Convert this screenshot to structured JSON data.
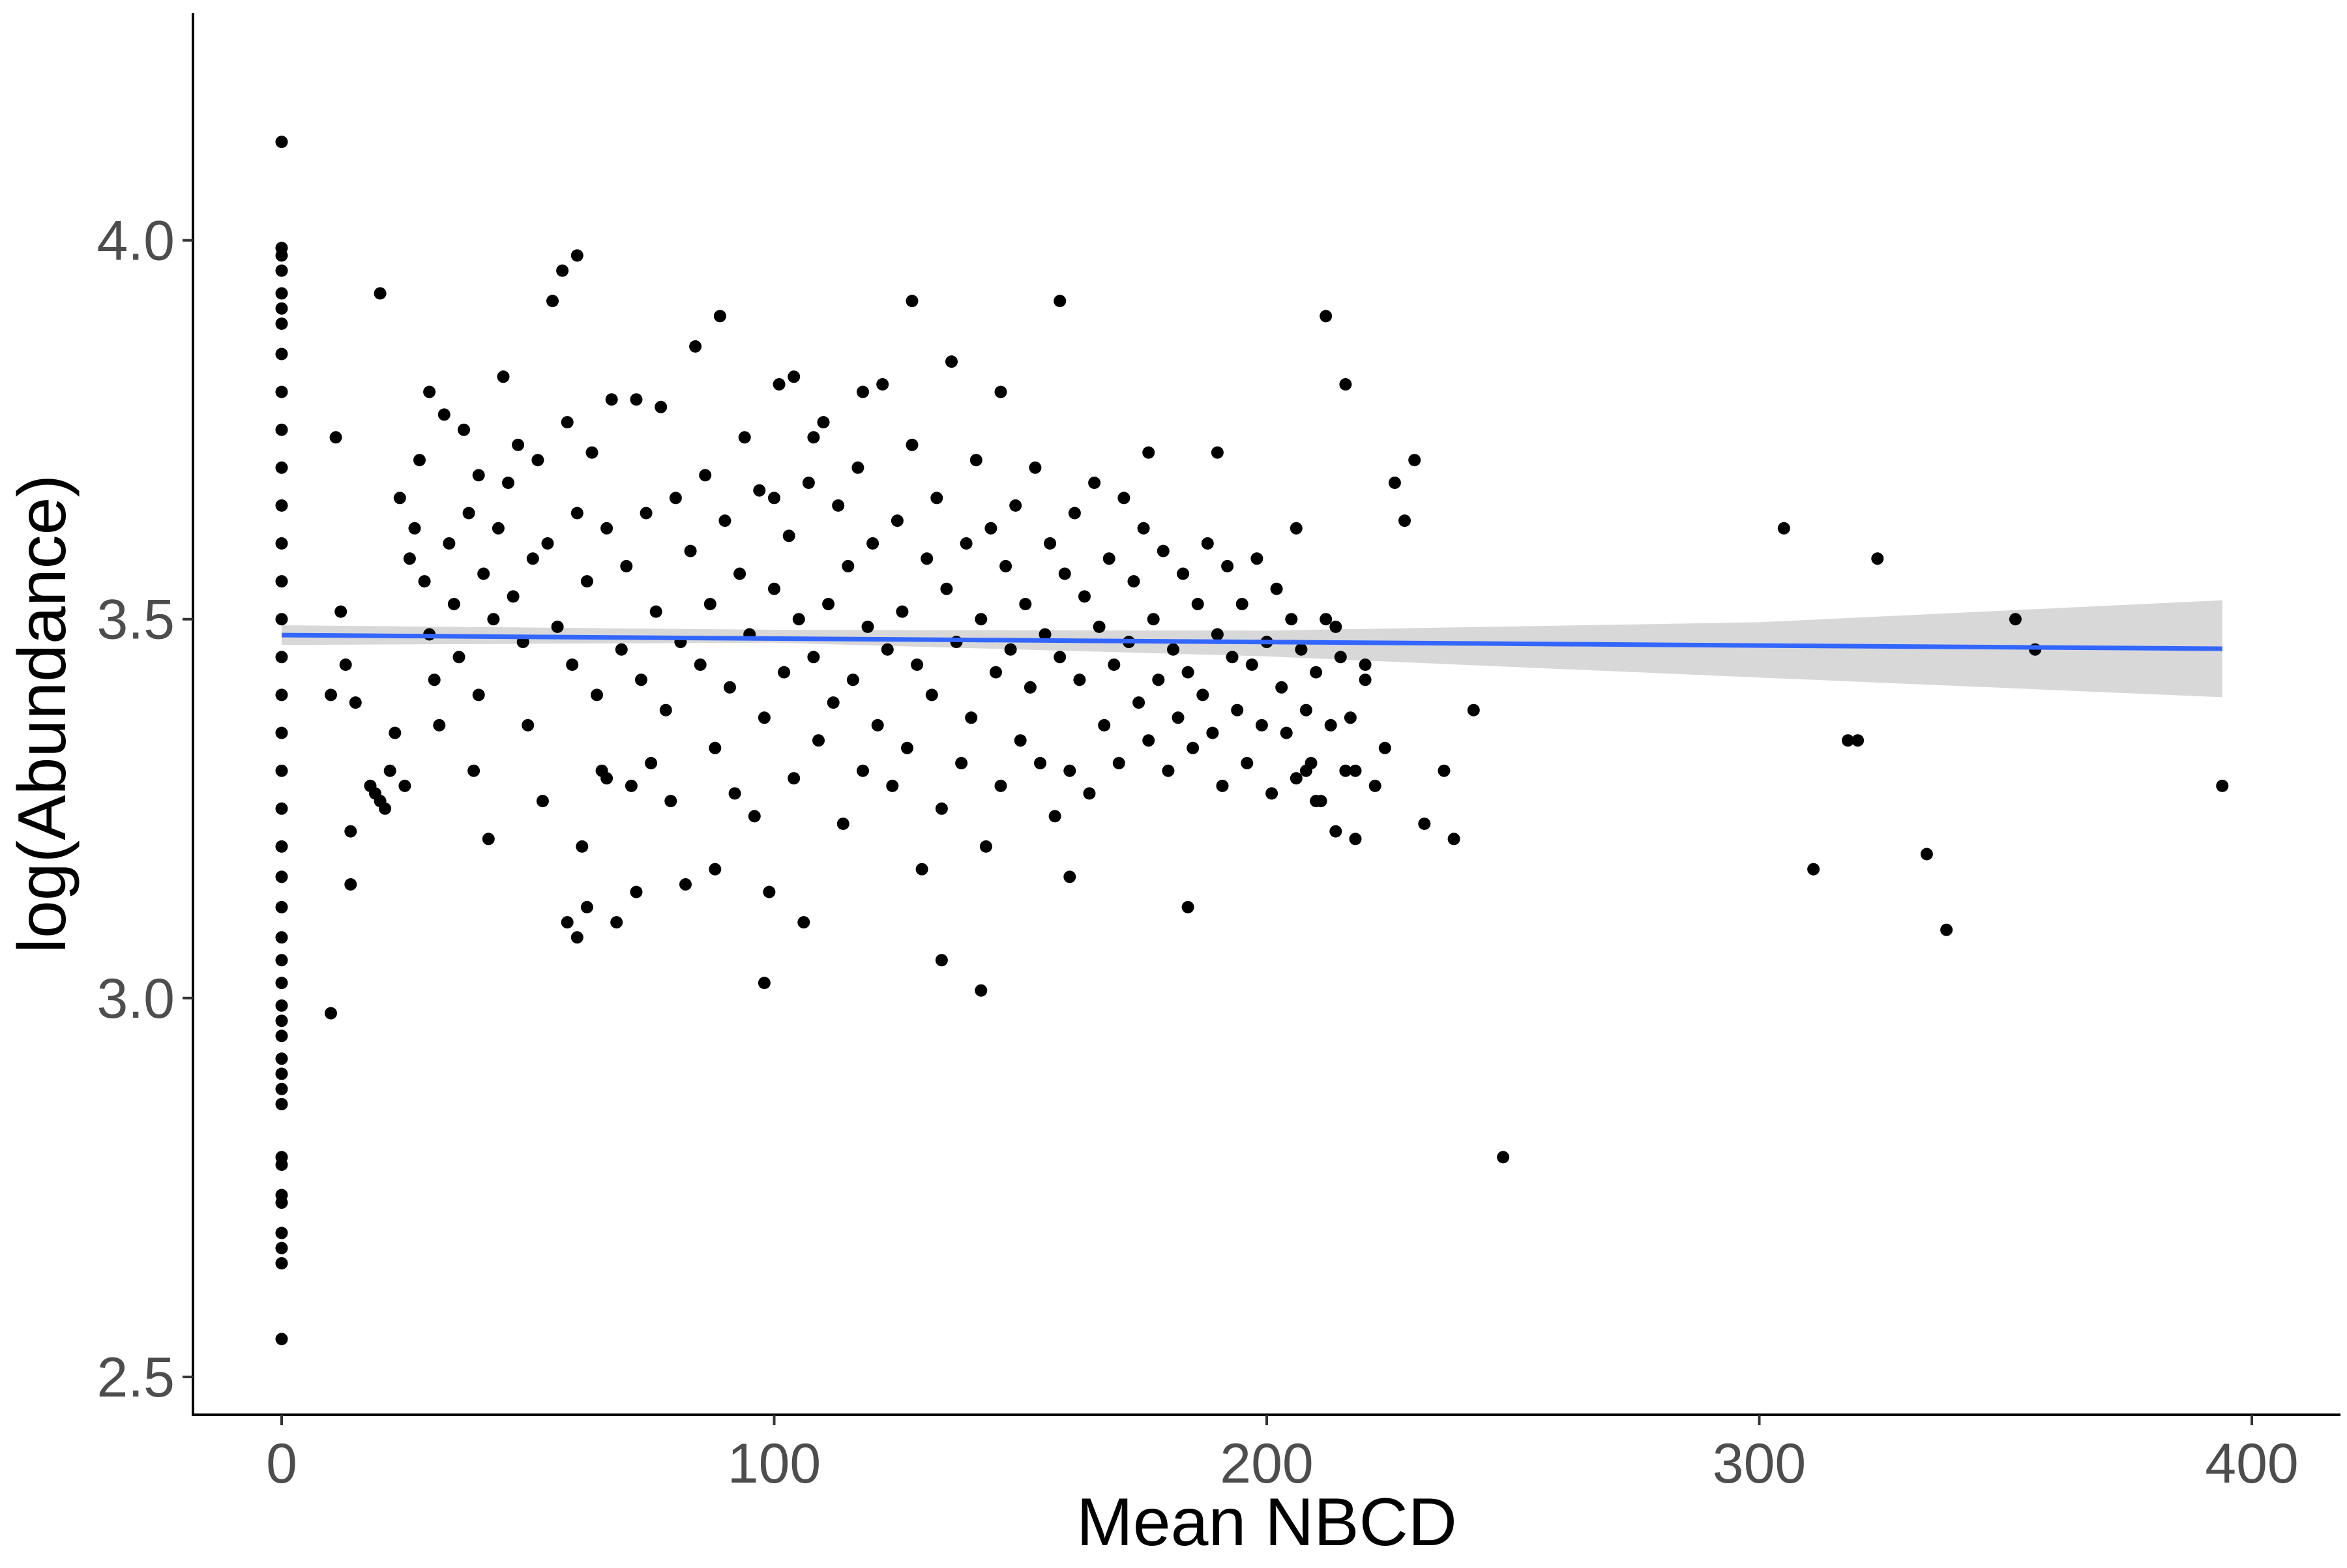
{
  "chart_data": {
    "type": "scatter",
    "title": "",
    "xlabel": "Mean NBCD",
    "ylabel": "log(Abundance)",
    "xlim": [
      -18,
      418
    ],
    "ylim": [
      2.45,
      4.3
    ],
    "x_ticks": [
      0,
      100,
      200,
      300,
      400
    ],
    "x_tick_labels": [
      "0",
      "100",
      "200",
      "300",
      "400"
    ],
    "y_ticks": [
      2.5,
      3.0,
      3.5,
      4.0
    ],
    "y_tick_labels": [
      "2.5",
      "3.0",
      "3.5",
      "4.0"
    ],
    "grid": false,
    "legend": "none",
    "colors": {
      "points": "#000000",
      "fit_line": "#3366ff",
      "ribbon": "#d4d4d4",
      "axis": "#000000"
    },
    "points": [
      [
        0,
        2.55
      ],
      [
        0,
        2.65
      ],
      [
        0,
        2.67
      ],
      [
        0,
        2.69
      ],
      [
        0,
        2.73
      ],
      [
        0,
        2.74
      ],
      [
        0,
        2.78
      ],
      [
        0,
        2.79
      ],
      [
        0,
        2.86
      ],
      [
        0,
        2.88
      ],
      [
        0,
        2.9
      ],
      [
        0,
        2.92
      ],
      [
        0,
        2.95
      ],
      [
        0,
        2.97
      ],
      [
        0,
        2.99
      ],
      [
        0,
        3.02
      ],
      [
        0,
        3.05
      ],
      [
        0,
        3.08
      ],
      [
        0,
        3.12
      ],
      [
        0,
        3.16
      ],
      [
        0,
        3.2
      ],
      [
        0,
        3.25
      ],
      [
        0,
        3.3
      ],
      [
        0,
        3.35
      ],
      [
        0,
        3.4
      ],
      [
        0,
        3.45
      ],
      [
        0,
        3.5
      ],
      [
        0,
        3.55
      ],
      [
        0,
        3.6
      ],
      [
        0,
        3.65
      ],
      [
        0,
        3.7
      ],
      [
        0,
        3.75
      ],
      [
        0,
        3.8
      ],
      [
        0,
        3.85
      ],
      [
        0,
        3.89
      ],
      [
        0,
        3.91
      ],
      [
        0,
        3.93
      ],
      [
        0,
        3.96
      ],
      [
        0,
        3.98
      ],
      [
        0,
        3.99
      ],
      [
        0,
        4.13
      ],
      [
        10,
        2.98
      ],
      [
        10,
        3.4
      ],
      [
        11,
        3.74
      ],
      [
        12,
        3.51
      ],
      [
        13,
        3.44
      ],
      [
        14,
        3.15
      ],
      [
        14,
        3.22
      ],
      [
        15,
        3.39
      ],
      [
        18,
        3.28
      ],
      [
        19,
        3.27
      ],
      [
        20,
        3.26
      ],
      [
        20,
        3.93
      ],
      [
        21,
        3.25
      ],
      [
        22,
        3.3
      ],
      [
        23,
        3.35
      ],
      [
        24,
        3.66
      ],
      [
        25,
        3.28
      ],
      [
        26,
        3.58
      ],
      [
        27,
        3.62
      ],
      [
        28,
        3.71
      ],
      [
        29,
        3.55
      ],
      [
        30,
        3.48
      ],
      [
        30,
        3.8
      ],
      [
        31,
        3.42
      ],
      [
        32,
        3.36
      ],
      [
        33,
        3.77
      ],
      [
        34,
        3.6
      ],
      [
        35,
        3.52
      ],
      [
        36,
        3.45
      ],
      [
        37,
        3.75
      ],
      [
        38,
        3.64
      ],
      [
        39,
        3.3
      ],
      [
        40,
        3.4
      ],
      [
        40,
        3.69
      ],
      [
        41,
        3.56
      ],
      [
        42,
        3.21
      ],
      [
        43,
        3.5
      ],
      [
        44,
        3.62
      ],
      [
        45,
        3.82
      ],
      [
        46,
        3.68
      ],
      [
        47,
        3.53
      ],
      [
        48,
        3.73
      ],
      [
        49,
        3.47
      ],
      [
        50,
        3.36
      ],
      [
        51,
        3.58
      ],
      [
        52,
        3.71
      ],
      [
        53,
        3.26
      ],
      [
        54,
        3.6
      ],
      [
        55,
        3.92
      ],
      [
        56,
        3.49
      ],
      [
        57,
        3.96
      ],
      [
        58,
        3.76
      ],
      [
        59,
        3.44
      ],
      [
        60,
        3.64
      ],
      [
        60,
        3.98
      ],
      [
        61,
        3.2
      ],
      [
        62,
        3.55
      ],
      [
        63,
        3.72
      ],
      [
        64,
        3.4
      ],
      [
        65,
        3.3
      ],
      [
        66,
        3.62
      ],
      [
        67,
        3.79
      ],
      [
        68,
        3.1
      ],
      [
        69,
        3.46
      ],
      [
        70,
        3.57
      ],
      [
        71,
        3.28
      ],
      [
        72,
        3.79
      ],
      [
        73,
        3.42
      ],
      [
        74,
        3.64
      ],
      [
        75,
        3.31
      ],
      [
        76,
        3.51
      ],
      [
        77,
        3.78
      ],
      [
        78,
        3.38
      ],
      [
        79,
        3.26
      ],
      [
        80,
        3.66
      ],
      [
        81,
        3.47
      ],
      [
        82,
        3.15
      ],
      [
        83,
        3.59
      ],
      [
        84,
        3.86
      ],
      [
        85,
        3.44
      ],
      [
        86,
        3.69
      ],
      [
        87,
        3.52
      ],
      [
        88,
        3.33
      ],
      [
        89,
        3.9
      ],
      [
        90,
        3.63
      ],
      [
        91,
        3.41
      ],
      [
        92,
        3.27
      ],
      [
        93,
        3.56
      ],
      [
        94,
        3.74
      ],
      [
        95,
        3.48
      ],
      [
        96,
        3.24
      ],
      [
        97,
        3.67
      ],
      [
        98,
        3.37
      ],
      [
        99,
        3.14
      ],
      [
        100,
        3.54
      ],
      [
        101,
        3.81
      ],
      [
        102,
        3.43
      ],
      [
        103,
        3.61
      ],
      [
        104,
        3.29
      ],
      [
        105,
        3.5
      ],
      [
        106,
        3.1
      ],
      [
        107,
        3.68
      ],
      [
        108,
        3.45
      ],
      [
        109,
        3.34
      ],
      [
        110,
        3.76
      ],
      [
        111,
        3.52
      ],
      [
        112,
        3.39
      ],
      [
        113,
        3.65
      ],
      [
        114,
        3.23
      ],
      [
        115,
        3.57
      ],
      [
        116,
        3.42
      ],
      [
        117,
        3.7
      ],
      [
        118,
        3.3
      ],
      [
        119,
        3.49
      ],
      [
        120,
        3.6
      ],
      [
        121,
        3.36
      ],
      [
        122,
        3.81
      ],
      [
        123,
        3.46
      ],
      [
        124,
        3.28
      ],
      [
        125,
        3.63
      ],
      [
        126,
        3.51
      ],
      [
        127,
        3.33
      ],
      [
        128,
        3.73
      ],
      [
        129,
        3.44
      ],
      [
        130,
        3.17
      ],
      [
        131,
        3.58
      ],
      [
        132,
        3.4
      ],
      [
        133,
        3.66
      ],
      [
        134,
        3.25
      ],
      [
        135,
        3.54
      ],
      [
        136,
        3.84
      ],
      [
        137,
        3.47
      ],
      [
        138,
        3.31
      ],
      [
        139,
        3.6
      ],
      [
        140,
        3.37
      ],
      [
        141,
        3.71
      ],
      [
        142,
        3.5
      ],
      [
        143,
        3.2
      ],
      [
        144,
        3.62
      ],
      [
        145,
        3.43
      ],
      [
        146,
        3.28
      ],
      [
        147,
        3.57
      ],
      [
        148,
        3.46
      ],
      [
        149,
        3.65
      ],
      [
        150,
        3.34
      ],
      [
        151,
        3.52
      ],
      [
        152,
        3.41
      ],
      [
        153,
        3.7
      ],
      [
        154,
        3.31
      ],
      [
        155,
        3.48
      ],
      [
        156,
        3.6
      ],
      [
        157,
        3.24
      ],
      [
        158,
        3.45
      ],
      [
        159,
        3.56
      ],
      [
        160,
        3.3
      ],
      [
        161,
        3.64
      ],
      [
        162,
        3.42
      ],
      [
        163,
        3.53
      ],
      [
        164,
        3.27
      ],
      [
        165,
        3.68
      ],
      [
        166,
        3.49
      ],
      [
        167,
        3.36
      ],
      [
        168,
        3.58
      ],
      [
        169,
        3.44
      ],
      [
        170,
        3.31
      ],
      [
        171,
        3.66
      ],
      [
        172,
        3.47
      ],
      [
        173,
        3.55
      ],
      [
        174,
        3.39
      ],
      [
        175,
        3.62
      ],
      [
        176,
        3.34
      ],
      [
        177,
        3.5
      ],
      [
        178,
        3.42
      ],
      [
        179,
        3.59
      ],
      [
        180,
        3.3
      ],
      [
        181,
        3.46
      ],
      [
        182,
        3.37
      ],
      [
        183,
        3.56
      ],
      [
        184,
        3.43
      ],
      [
        185,
        3.33
      ],
      [
        186,
        3.52
      ],
      [
        187,
        3.4
      ],
      [
        188,
        3.6
      ],
      [
        189,
        3.35
      ],
      [
        190,
        3.48
      ],
      [
        191,
        3.28
      ],
      [
        192,
        3.57
      ],
      [
        193,
        3.45
      ],
      [
        194,
        3.38
      ],
      [
        195,
        3.52
      ],
      [
        196,
        3.31
      ],
      [
        197,
        3.44
      ],
      [
        198,
        3.58
      ],
      [
        199,
        3.36
      ],
      [
        200,
        3.47
      ],
      [
        201,
        3.27
      ],
      [
        202,
        3.54
      ],
      [
        203,
        3.41
      ],
      [
        204,
        3.35
      ],
      [
        205,
        3.5
      ],
      [
        206,
        3.29
      ],
      [
        207,
        3.46
      ],
      [
        208,
        3.38
      ],
      [
        209,
        3.31
      ],
      [
        210,
        3.43
      ],
      [
        211,
        3.26
      ],
      [
        212,
        3.5
      ],
      [
        213,
        3.36
      ],
      [
        214,
        3.22
      ],
      [
        215,
        3.45
      ],
      [
        216,
        3.3
      ],
      [
        217,
        3.37
      ],
      [
        218,
        3.21
      ],
      [
        220,
        3.42
      ],
      [
        222,
        3.28
      ],
      [
        58,
        3.1
      ],
      [
        60,
        3.08
      ],
      [
        62,
        3.12
      ],
      [
        66,
        3.29
      ],
      [
        72,
        3.14
      ],
      [
        88,
        3.17
      ],
      [
        98,
        3.02
      ],
      [
        100,
        3.66
      ],
      [
        104,
        3.82
      ],
      [
        108,
        3.74
      ],
      [
        118,
        3.8
      ],
      [
        128,
        3.92
      ],
      [
        134,
        3.05
      ],
      [
        142,
        3.01
      ],
      [
        146,
        3.8
      ],
      [
        158,
        3.92
      ],
      [
        160,
        3.16
      ],
      [
        176,
        3.72
      ],
      [
        184,
        3.12
      ],
      [
        190,
        3.72
      ],
      [
        206,
        3.62
      ],
      [
        208,
        3.3
      ],
      [
        210,
        3.26
      ],
      [
        212,
        3.9
      ],
      [
        214,
        3.49
      ],
      [
        216,
        3.81
      ],
      [
        218,
        3.3
      ],
      [
        220,
        3.44
      ],
      [
        224,
        3.33
      ],
      [
        226,
        3.68
      ],
      [
        228,
        3.63
      ],
      [
        230,
        3.71
      ],
      [
        232,
        3.23
      ],
      [
        236,
        3.3
      ],
      [
        238,
        3.21
      ],
      [
        242,
        3.38
      ],
      [
        248,
        2.79
      ],
      [
        305,
        3.62
      ],
      [
        311,
        3.17
      ],
      [
        318,
        3.34
      ],
      [
        320,
        3.34
      ],
      [
        324,
        3.58
      ],
      [
        334,
        3.19
      ],
      [
        338,
        3.09
      ],
      [
        352,
        3.5
      ],
      [
        356,
        3.46
      ],
      [
        394,
        3.28
      ]
    ],
    "fit_line": {
      "x": [
        0,
        394
      ],
      "y": [
        3.479,
        3.461
      ]
    },
    "ribbon": {
      "x": [
        0,
        100,
        200,
        300,
        394
      ],
      "lower": [
        3.466,
        3.469,
        3.451,
        3.423,
        3.397
      ],
      "upper": [
        3.492,
        3.486,
        3.485,
        3.496,
        3.525
      ]
    }
  }
}
